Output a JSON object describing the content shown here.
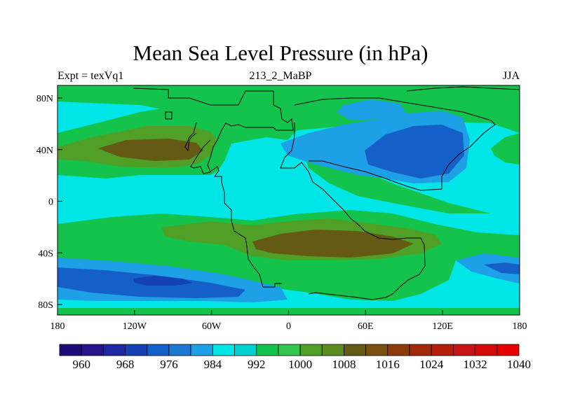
{
  "title": "Mean Sea Level Pressure (in hPa)",
  "subtitle_left": "Expt = texVq1",
  "subtitle_center": "213_2_MaBP",
  "subtitle_right": "JJA",
  "x_axis": {
    "ticks": [
      "180",
      "120W",
      "60W",
      "0",
      "60E",
      "120E",
      "180"
    ]
  },
  "y_axis": {
    "ticks": [
      "80N",
      "40N",
      "0",
      "40S",
      "80S"
    ]
  },
  "colorbar": {
    "labels": [
      "960",
      "968",
      "976",
      "984",
      "992",
      "1000",
      "1008",
      "1016",
      "1024",
      "1032",
      "1040"
    ],
    "colors": [
      "#1e0a78",
      "#28148c",
      "#1e28a0",
      "#1441b4",
      "#1460c8",
      "#1e78d2",
      "#1ea0e6",
      "#00e6e6",
      "#00d2d2",
      "#14c34b",
      "#32c850",
      "#50a028",
      "#5a8c1e",
      "#645a14",
      "#7a5010",
      "#8c3c0a",
      "#a02a0a",
      "#b41e0a",
      "#c81414",
      "#d20a0a",
      "#e60000"
    ]
  },
  "map_colors": {
    "ocean_low": "#00e6e6",
    "mid": "#14c34b",
    "high": "#50a028",
    "very_high": "#645a14",
    "low": "#1ea0e6",
    "lower": "#1460c8",
    "lowest": "#1441b4"
  }
}
